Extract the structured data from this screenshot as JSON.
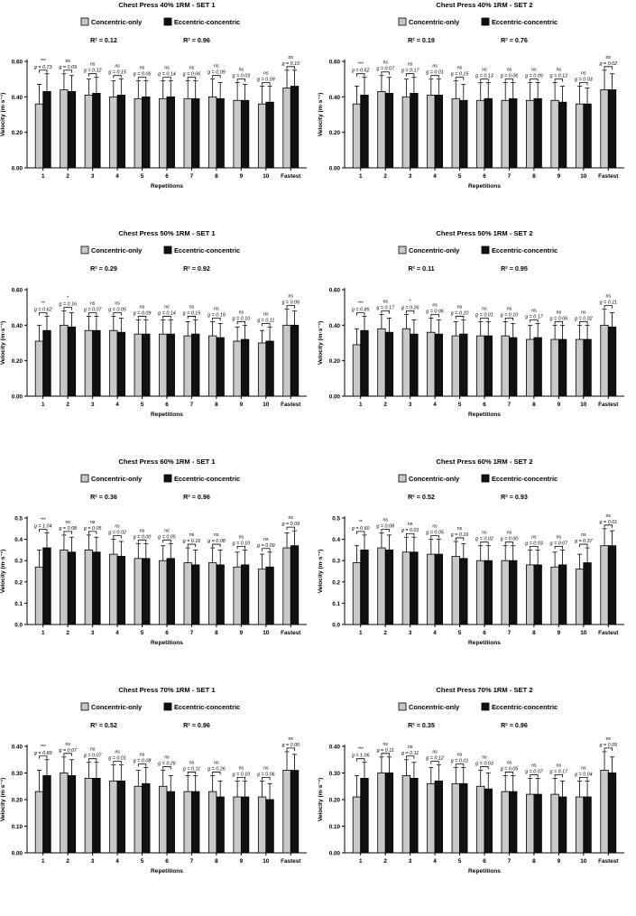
{
  "colors": {
    "concentric": "#c8c8c8",
    "eccentric": "#111111",
    "axis": "#000000"
  },
  "chart_data": [
    {
      "type": "bar",
      "title": "Chest Press 40% 1RM - SET 1",
      "legend": [
        "Concentric-only",
        "Eccentric-concentric"
      ],
      "r2": [
        "R² = 0.12",
        "R² = 0.96"
      ],
      "xlabel": "Repetitions",
      "ylabel": "Velocity (m·s⁻¹)",
      "ylim": [
        0,
        0.6
      ],
      "yticks": [
        "0.00",
        "0.20",
        "0.40",
        "0.60"
      ],
      "categories": [
        "1",
        "2",
        "3",
        "4",
        "5",
        "6",
        "7",
        "8",
        "9",
        "10",
        "Fastest"
      ],
      "series": [
        {
          "name": "Concentric-only",
          "values": [
            0.36,
            0.44,
            0.41,
            0.4,
            0.39,
            0.39,
            0.39,
            0.4,
            0.38,
            0.36,
            0.45
          ],
          "errors": [
            0.11,
            0.09,
            0.09,
            0.09,
            0.1,
            0.1,
            0.1,
            0.1,
            0.1,
            0.1,
            0.1
          ]
        },
        {
          "name": "Eccentric-concentric",
          "values": [
            0.43,
            0.43,
            0.42,
            0.41,
            0.4,
            0.4,
            0.39,
            0.39,
            0.38,
            0.37,
            0.46
          ],
          "errors": [
            0.1,
            0.09,
            0.09,
            0.09,
            0.09,
            0.09,
            0.1,
            0.09,
            0.09,
            0.09,
            0.09
          ]
        }
      ],
      "sig": [
        "***",
        "ns",
        "ns",
        "ns",
        "ns",
        "ns",
        "ns",
        "ns",
        "ns",
        "ns",
        "ns"
      ],
      "g": [
        "g = 0.73",
        "g = 0.09",
        "g = 0.12",
        "g = 0.15",
        "g = 0.06",
        "g = 0.14",
        "g = 0.06",
        "g = 0.09",
        "g = 0.03",
        "g = 0.09",
        "g = 0.10"
      ]
    },
    {
      "type": "bar",
      "title": "Chest Press 40% 1RM - SET 2",
      "legend": [
        "Concentric-only",
        "Eccentric-concentric"
      ],
      "r2": [
        "R² = 0.19",
        "R² = 0.76"
      ],
      "xlabel": "Repetitions",
      "ylabel": "Velocity (m·s⁻¹)",
      "ylim": [
        0,
        0.6
      ],
      "yticks": [
        "0.00",
        "0.20",
        "0.40",
        "0.60"
      ],
      "categories": [
        "1",
        "2",
        "3",
        "4",
        "5",
        "6",
        "7",
        "8",
        "9",
        "10",
        "Fastest"
      ],
      "series": [
        {
          "name": "Concentric-only",
          "values": [
            0.36,
            0.43,
            0.4,
            0.41,
            0.39,
            0.38,
            0.38,
            0.38,
            0.38,
            0.36,
            0.44
          ],
          "errors": [
            0.1,
            0.09,
            0.1,
            0.09,
            0.1,
            0.1,
            0.1,
            0.1,
            0.1,
            0.1,
            0.11
          ]
        },
        {
          "name": "Eccentric-concentric",
          "values": [
            0.41,
            0.42,
            0.42,
            0.41,
            0.38,
            0.39,
            0.39,
            0.39,
            0.37,
            0.36,
            0.44
          ],
          "errors": [
            0.1,
            0.09,
            0.09,
            0.09,
            0.09,
            0.09,
            0.09,
            0.09,
            0.09,
            0.09,
            0.09
          ]
        }
      ],
      "sig": [
        "***",
        "ns",
        "ns",
        "ns",
        "ns",
        "ns",
        "ns",
        "ns",
        "ns",
        "ns",
        "ns"
      ],
      "g": [
        "g = 0.52",
        "g = 0.07",
        "g = 0.17",
        "g = 0.01",
        "g = 0.15",
        "g = 0.13",
        "g = 0.06",
        "g = 0.09",
        "g = 0.12",
        "g = 0.03",
        "g = 0.02"
      ]
    },
    {
      "type": "bar",
      "title": "Chest Press 50% 1RM - SET 1",
      "legend": [
        "Concentric-only",
        "Eccentric-concentric"
      ],
      "r2": [
        "R² = 0.29",
        "R² = 0.92"
      ],
      "xlabel": "Repetitions",
      "ylabel": "Velocity (m·s⁻¹)",
      "ylim": [
        0,
        0.6
      ],
      "yticks": [
        "0.00",
        "0.20",
        "0.40",
        "0.60"
      ],
      "categories": [
        "1",
        "2",
        "3",
        "4",
        "5",
        "6",
        "7",
        "8",
        "9",
        "10",
        "Fastest"
      ],
      "series": [
        {
          "name": "Concentric-only",
          "values": [
            0.31,
            0.4,
            0.37,
            0.37,
            0.35,
            0.35,
            0.34,
            0.34,
            0.31,
            0.3,
            0.4
          ],
          "errors": [
            0.09,
            0.08,
            0.08,
            0.08,
            0.08,
            0.08,
            0.08,
            0.08,
            0.08,
            0.07,
            0.09
          ]
        },
        {
          "name": "Eccentric-concentric",
          "values": [
            0.37,
            0.39,
            0.37,
            0.36,
            0.35,
            0.35,
            0.35,
            0.33,
            0.32,
            0.31,
            0.4
          ],
          "errors": [
            0.08,
            0.08,
            0.08,
            0.08,
            0.08,
            0.08,
            0.08,
            0.08,
            0.08,
            0.08,
            0.08
          ]
        }
      ],
      "sig": [
        "**",
        "*",
        "ns",
        "ns",
        "ns",
        "ns",
        "ns",
        "ns",
        "ns",
        "ns",
        "ns"
      ],
      "g": [
        "g = 0.62",
        "g = 0.16",
        "g = 0.07",
        "g = 0.05",
        "g = 0.09",
        "g = 0.14",
        "g = 0.15",
        "g = 0.19",
        "g = 0.10",
        "g = 0.11",
        "g = 0.06"
      ]
    },
    {
      "type": "bar",
      "title": "Chest Press 50% 1RM - SET 2",
      "legend": [
        "Concentric-only",
        "Eccentric-concentric"
      ],
      "r2": [
        "R² = 0.11",
        "R² = 0.95"
      ],
      "xlabel": "Repetitions",
      "ylabel": "Velocity (m·s⁻¹)",
      "ylim": [
        0,
        0.6
      ],
      "yticks": [
        "0.00",
        "0.20",
        "0.40",
        "0.60"
      ],
      "categories": [
        "1",
        "2",
        "3",
        "4",
        "5",
        "6",
        "7",
        "8",
        "9",
        "10",
        "Fastest"
      ],
      "series": [
        {
          "name": "Concentric-only",
          "values": [
            0.29,
            0.38,
            0.38,
            0.36,
            0.34,
            0.34,
            0.34,
            0.32,
            0.32,
            0.32,
            0.4
          ],
          "errors": [
            0.09,
            0.08,
            0.08,
            0.08,
            0.08,
            0.08,
            0.08,
            0.08,
            0.08,
            0.08,
            0.09
          ]
        },
        {
          "name": "Eccentric-concentric",
          "values": [
            0.37,
            0.36,
            0.35,
            0.35,
            0.35,
            0.34,
            0.33,
            0.33,
            0.32,
            0.32,
            0.39
          ],
          "errors": [
            0.08,
            0.08,
            0.08,
            0.08,
            0.08,
            0.08,
            0.08,
            0.08,
            0.08,
            0.08,
            0.08
          ]
        }
      ],
      "sig": [
        "***",
        "ns",
        "*",
        "ns",
        "ns",
        "ns",
        "ns",
        "ns",
        "ns",
        "ns",
        "ns"
      ],
      "g": [
        "g = 0.85",
        "g = 0.17",
        "g = 0.26",
        "g = 0.06",
        "g = 0.10",
        "g = 0.01",
        "g = 0.10",
        "g = 0.17",
        "g = 0.06",
        "g = 0.02",
        "g = 0.11"
      ]
    },
    {
      "type": "bar",
      "title": "Chest Press 60% 1RM - SET 1",
      "legend": [
        "Concentric-only",
        "Eccentric-concentric"
      ],
      "r2": [
        "R² = 0.36",
        "R² = 0.96"
      ],
      "xlabel": "Repetitions",
      "ylabel": "Velocity (m·s⁻¹)",
      "ylim": [
        0,
        0.5
      ],
      "yticks": [
        "0.0",
        "0.1",
        "0.2",
        "0.3",
        "0.4",
        "0.5"
      ],
      "categories": [
        "1",
        "2",
        "3",
        "4",
        "5",
        "6",
        "7",
        "8",
        "9",
        "10",
        "Fastest"
      ],
      "series": [
        {
          "name": "Concentric-only",
          "values": [
            0.27,
            0.35,
            0.35,
            0.33,
            0.31,
            0.3,
            0.29,
            0.29,
            0.27,
            0.26,
            0.36
          ],
          "errors": [
            0.08,
            0.07,
            0.07,
            0.07,
            0.07,
            0.07,
            0.07,
            0.07,
            0.07,
            0.07,
            0.07
          ]
        },
        {
          "name": "Eccentric-concentric",
          "values": [
            0.36,
            0.34,
            0.34,
            0.32,
            0.31,
            0.31,
            0.28,
            0.28,
            0.28,
            0.27,
            0.37
          ],
          "errors": [
            0.07,
            0.07,
            0.07,
            0.07,
            0.07,
            0.07,
            0.07,
            0.07,
            0.07,
            0.07,
            0.07
          ]
        }
      ],
      "sig": [
        "***",
        "ns",
        "ns",
        "ns",
        "ns",
        "ns",
        "ns",
        "ns",
        "ns",
        "ns",
        "ns"
      ],
      "g": [
        "g = 1.04",
        "g = 0.08",
        "g = 0.05",
        "g = 0.02",
        "g = 0.00",
        "g = 0.05",
        "g = 0.16",
        "g = 0.08",
        "g = 0.10",
        "g = 0.09",
        "g = 0.09"
      ]
    },
    {
      "type": "bar",
      "title": "Chest Press 60% 1RM - SET 2",
      "legend": [
        "Concentric-only",
        "Eccentric-concentric"
      ],
      "r2": [
        "R² = 0.52",
        "R² = 0.93"
      ],
      "xlabel": "Repetitions",
      "ylabel": "Velocity (m·s⁻¹)",
      "ylim": [
        0,
        0.5
      ],
      "yticks": [
        "0.0",
        "0.1",
        "0.2",
        "0.3",
        "0.4",
        "0.5"
      ],
      "categories": [
        "1",
        "2",
        "3",
        "4",
        "5",
        "6",
        "7",
        "8",
        "9",
        "10",
        "Fastest"
      ],
      "series": [
        {
          "name": "Concentric-only",
          "values": [
            0.29,
            0.36,
            0.34,
            0.33,
            0.32,
            0.3,
            0.3,
            0.28,
            0.27,
            0.26,
            0.37
          ],
          "errors": [
            0.08,
            0.07,
            0.07,
            0.07,
            0.07,
            0.07,
            0.07,
            0.07,
            0.07,
            0.07,
            0.08
          ]
        },
        {
          "name": "Eccentric-concentric",
          "values": [
            0.35,
            0.35,
            0.34,
            0.33,
            0.31,
            0.3,
            0.3,
            0.28,
            0.28,
            0.29,
            0.37
          ],
          "errors": [
            0.07,
            0.07,
            0.07,
            0.07,
            0.07,
            0.07,
            0.07,
            0.07,
            0.07,
            0.07,
            0.07
          ]
        }
      ],
      "sig": [
        "**",
        "ns",
        "ns",
        "ns",
        "ns",
        "ns",
        "ns",
        "ns",
        "ns",
        "ns",
        "ns"
      ],
      "g": [
        "g = 0.60",
        "g = 0.08",
        "g = 0.01",
        "g = 0.05",
        "g = 0.16",
        "g = 0.02",
        "g = 0.00",
        "g = 0.03",
        "g = 0.07",
        "g = 0.37",
        "g = 0.01"
      ]
    },
    {
      "type": "bar",
      "title": "Chest Press 70% 1RM - SET 1",
      "legend": [
        "Concentric-only",
        "Eccentric-concentric"
      ],
      "r2": [
        "R² = 0.52",
        "R² = 0.96"
      ],
      "xlabel": "Repetitions",
      "ylabel": "Velocity (m·s⁻¹)",
      "ylim": [
        0,
        0.4
      ],
      "yticks": [
        "0.00",
        "0.10",
        "0.20",
        "0.30",
        "0.40"
      ],
      "categories": [
        "1",
        "2",
        "3",
        "4",
        "5",
        "6",
        "7",
        "8",
        "9",
        "10",
        "Fastest"
      ],
      "series": [
        {
          "name": "Concentric-only",
          "values": [
            0.23,
            0.3,
            0.28,
            0.27,
            0.25,
            0.25,
            0.23,
            0.23,
            0.21,
            0.21,
            0.31
          ],
          "errors": [
            0.08,
            0.06,
            0.06,
            0.06,
            0.06,
            0.06,
            0.06,
            0.06,
            0.06,
            0.06,
            0.07
          ]
        },
        {
          "name": "Eccentric-concentric",
          "values": [
            0.29,
            0.29,
            0.28,
            0.27,
            0.26,
            0.23,
            0.23,
            0.21,
            0.21,
            0.2,
            0.31
          ],
          "errors": [
            0.06,
            0.06,
            0.06,
            0.06,
            0.06,
            0.06,
            0.06,
            0.06,
            0.06,
            0.06,
            0.06
          ]
        }
      ],
      "sig": [
        "***",
        "ns",
        "ns",
        "ns",
        "ns",
        "ns",
        "ns",
        "ns",
        "ns",
        "ns",
        "ns"
      ],
      "g": [
        "g = 0.89",
        "g = 0.07",
        "g = 0.07",
        "g = 0.01",
        "g = 0.08",
        "g = 0.26",
        "g = 0.11",
        "g = 0.26",
        "g = 0.10",
        "g = 0.06",
        "g = 0.00"
      ]
    },
    {
      "type": "bar",
      "title": "Chest Press 70% 1RM - SET 2",
      "legend": [
        "Concentric-only",
        "Eccentric-concentric"
      ],
      "r2": [
        "R² = 0.35",
        "R² = 0.96"
      ],
      "xlabel": "Repetitions",
      "ylabel": "Velocity (m·s⁻¹)",
      "ylim": [
        0,
        0.4
      ],
      "yticks": [
        "0.00",
        "0.10",
        "0.20",
        "0.30",
        "0.40"
      ],
      "categories": [
        "1",
        "2",
        "3",
        "4",
        "5",
        "6",
        "7",
        "8",
        "9",
        "10",
        "Fastest"
      ],
      "series": [
        {
          "name": "Concentric-only",
          "values": [
            0.21,
            0.3,
            0.29,
            0.26,
            0.26,
            0.25,
            0.23,
            0.22,
            0.22,
            0.21,
            0.31
          ],
          "errors": [
            0.08,
            0.06,
            0.06,
            0.06,
            0.06,
            0.06,
            0.06,
            0.06,
            0.06,
            0.06,
            0.07
          ]
        },
        {
          "name": "Eccentric-concentric",
          "values": [
            0.28,
            0.3,
            0.28,
            0.27,
            0.26,
            0.24,
            0.23,
            0.22,
            0.21,
            0.21,
            0.3
          ],
          "errors": [
            0.06,
            0.06,
            0.06,
            0.06,
            0.06,
            0.06,
            0.06,
            0.06,
            0.06,
            0.06,
            0.06
          ]
        }
      ],
      "sig": [
        "***",
        "ns",
        "ns",
        "ns",
        "ns",
        "ns",
        "ns",
        "ns",
        "ns",
        "ns",
        "ns"
      ],
      "g": [
        "g = 1.06",
        "g = 0.11",
        "g = 0.11",
        "g = 0.12",
        "g = 0.01",
        "g = 0.03",
        "g = 0.05",
        "g = 0.07",
        "g = 0.17",
        "g = 0.04",
        "g = 0.05"
      ]
    }
  ]
}
